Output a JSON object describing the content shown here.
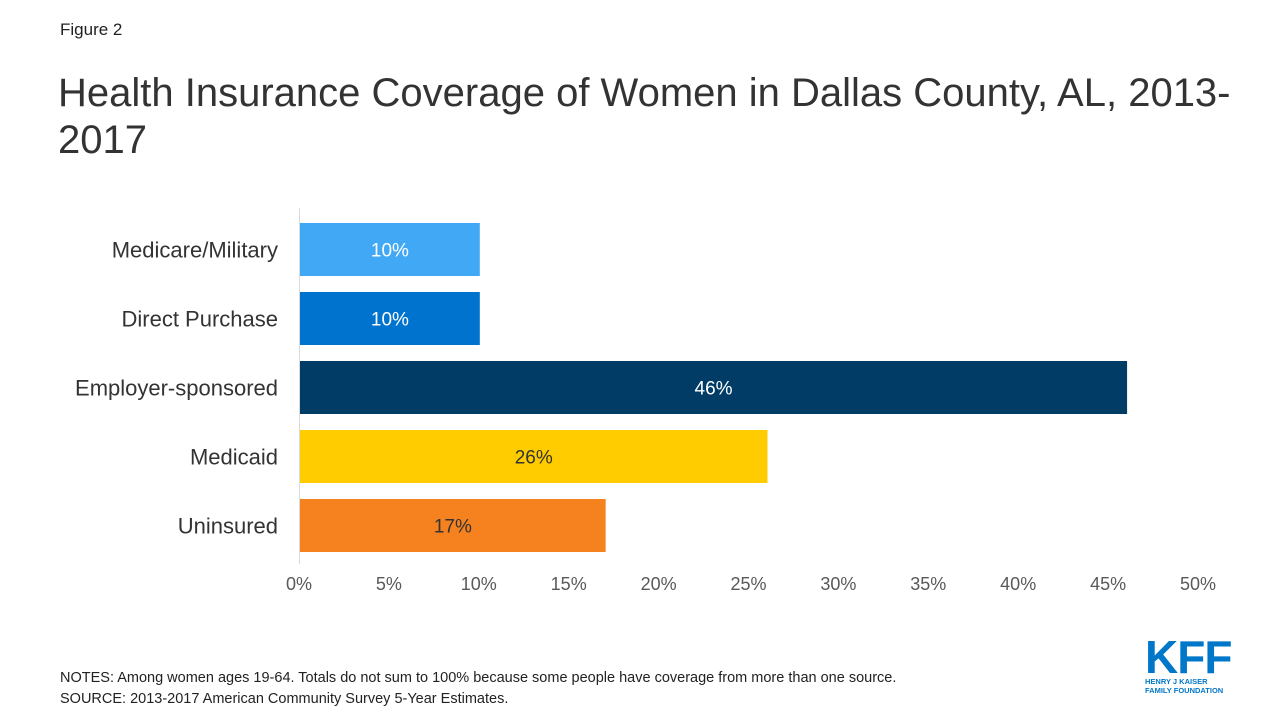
{
  "figure_label": "Figure 2",
  "notes": "NOTES: Among women ages 19-64. Totals do not sum to 100% because some people have coverage from more than one source.",
  "source": "SOURCE: 2013-2017 American Community Survey 5-Year Estimates.",
  "logo": {
    "mark": "KFF",
    "line1": "HENRY J KAISER",
    "line2": "FAMILY FOUNDATION"
  },
  "chart_data": {
    "type": "bar",
    "orientation": "horizontal",
    "title": "Health Insurance Coverage of Women in Dallas County, AL, 2013-2017",
    "categories": [
      "Medicare/Military",
      "Direct Purchase",
      "Employer-sponsored",
      "Medicaid",
      "Uninsured"
    ],
    "values": [
      10,
      10,
      46,
      26,
      17
    ],
    "data_labels": [
      "10%",
      "10%",
      "46%",
      "26%",
      "17%"
    ],
    "colors": [
      "#41a8f6",
      "#0073cf",
      "#003c66",
      "#ffcc00",
      "#f5821f"
    ],
    "label_colors": [
      "#ffffff",
      "#ffffff",
      "#ffffff",
      "#333333",
      "#333333"
    ],
    "xlim": [
      0,
      50
    ],
    "xticks": [
      0,
      5,
      10,
      15,
      20,
      25,
      30,
      35,
      40,
      45,
      50
    ],
    "xtick_labels": [
      "0%",
      "5%",
      "10%",
      "15%",
      "20%",
      "25%",
      "30%",
      "35%",
      "40%",
      "45%",
      "50%"
    ],
    "xlabel": "",
    "ylabel": "",
    "grid": false,
    "legend": false
  }
}
